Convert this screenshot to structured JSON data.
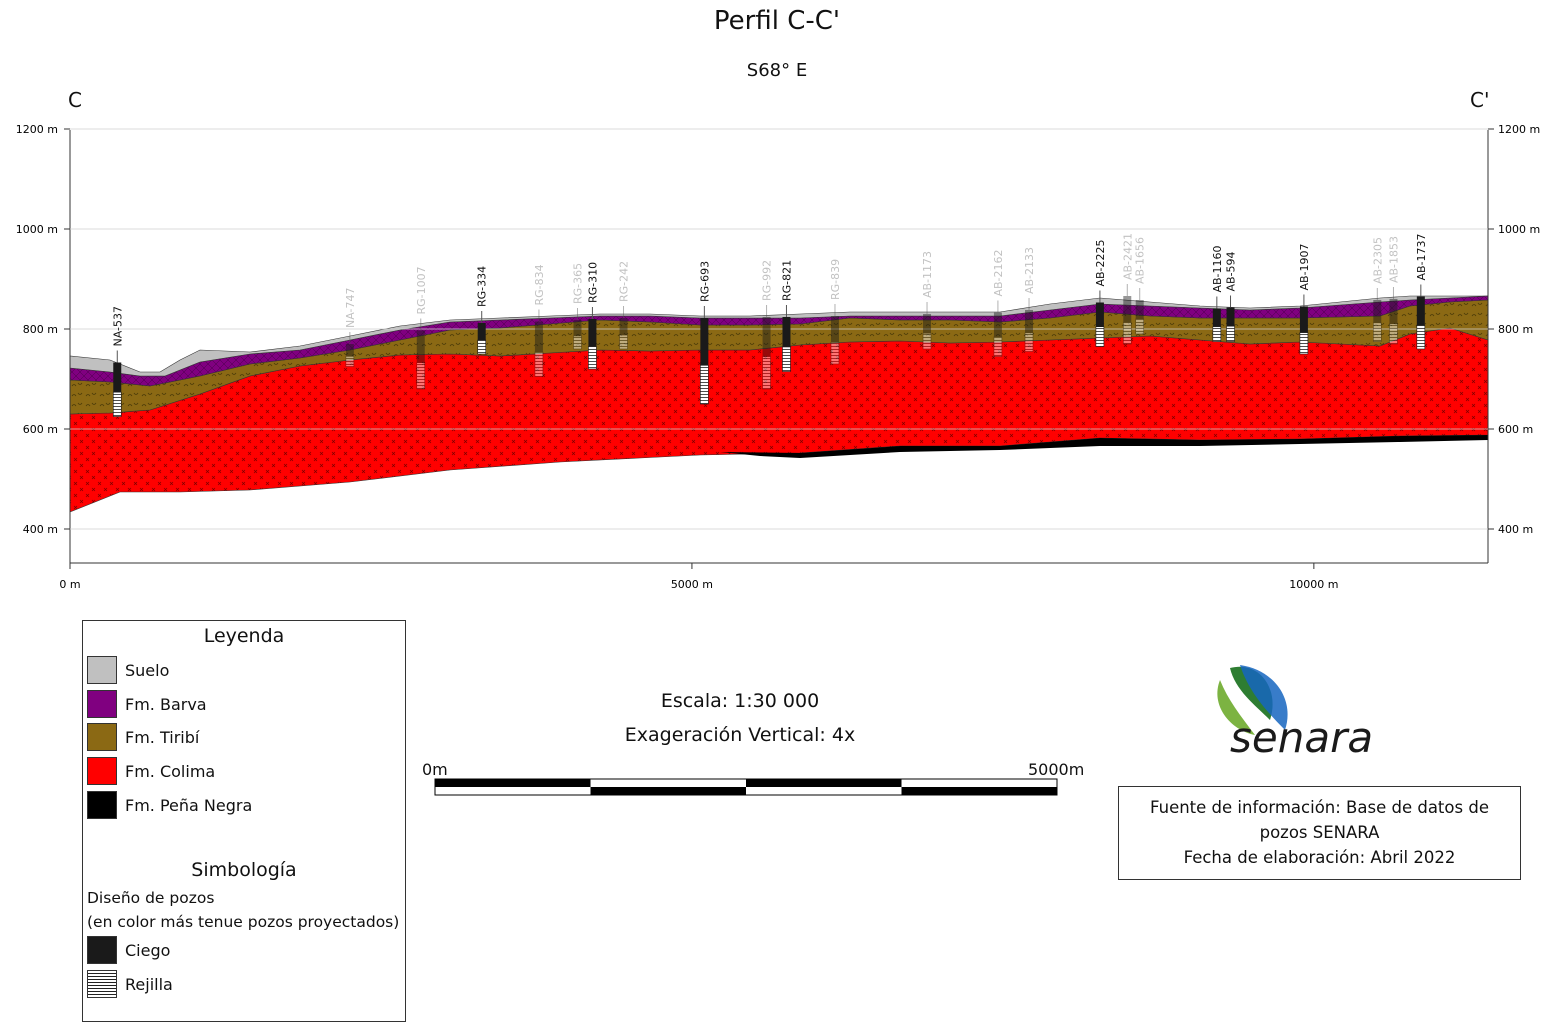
{
  "header": {
    "title": "Perfil C-C'",
    "bearing": "S68° E",
    "left_end": "C",
    "right_end": "C'"
  },
  "axes": {
    "y_ticks": [
      "1200 m",
      "1000 m",
      "800 m",
      "600 m",
      "400 m"
    ],
    "y_values": [
      1200,
      1000,
      800,
      600,
      400
    ],
    "x_ticks": [
      "0 m",
      "5000 m",
      "10000 m"
    ],
    "x_values": [
      0,
      5000,
      10000
    ]
  },
  "wells": [
    {
      "name": "NA-537",
      "d": 380,
      "top": 733,
      "bottom": 625,
      "projected": false
    },
    {
      "name": "NA-747",
      "d": 2250,
      "top": 770,
      "bottom": 725,
      "projected": true
    },
    {
      "name": "RG-1007",
      "d": 2820,
      "top": 797,
      "bottom": 680,
      "projected": true
    },
    {
      "name": "RG-334",
      "d": 3310,
      "top": 812,
      "bottom": 750,
      "projected": false
    },
    {
      "name": "RG-834",
      "d": 3770,
      "top": 815,
      "bottom": 705,
      "projected": true
    },
    {
      "name": "RG-365",
      "d": 4080,
      "top": 818,
      "bottom": 760,
      "projected": true
    },
    {
      "name": "RG-310",
      "d": 4200,
      "top": 820,
      "bottom": 720,
      "projected": false
    },
    {
      "name": "RG-242",
      "d": 4450,
      "top": 822,
      "bottom": 760,
      "projected": true
    },
    {
      "name": "RG-693",
      "d": 5100,
      "top": 822,
      "bottom": 650,
      "projected": false
    },
    {
      "name": "RG-992",
      "d": 5600,
      "top": 824,
      "bottom": 680,
      "projected": true
    },
    {
      "name": "RG-821",
      "d": 5760,
      "top": 824,
      "bottom": 715,
      "projected": false
    },
    {
      "name": "RG-839",
      "d": 6150,
      "top": 826,
      "bottom": 730,
      "projected": true
    },
    {
      "name": "AB-1173",
      "d": 6890,
      "top": 830,
      "bottom": 760,
      "projected": true
    },
    {
      "name": "AB-2162",
      "d": 7460,
      "top": 833,
      "bottom": 745,
      "projected": true
    },
    {
      "name": "AB-2133",
      "d": 7710,
      "top": 838,
      "bottom": 755,
      "projected": true
    },
    {
      "name": "AB-2225",
      "d": 8280,
      "top": 853,
      "bottom": 765,
      "projected": false
    },
    {
      "name": "AB-2421",
      "d": 8500,
      "top": 866,
      "bottom": 770,
      "projected": true
    },
    {
      "name": "AB-1656",
      "d": 8600,
      "top": 858,
      "bottom": 790,
      "projected": true
    },
    {
      "name": "AB-1160",
      "d": 9220,
      "top": 841,
      "bottom": 775,
      "projected": false
    },
    {
      "name": "AB-594",
      "d": 9330,
      "top": 843,
      "bottom": 775,
      "projected": false
    },
    {
      "name": "AB-1907",
      "d": 9920,
      "top": 845,
      "bottom": 750,
      "projected": false
    },
    {
      "name": "AB-2305",
      "d": 10510,
      "top": 858,
      "bottom": 775,
      "projected": true
    },
    {
      "name": "AB-1853",
      "d": 10640,
      "top": 860,
      "bottom": 770,
      "projected": true
    },
    {
      "name": "AB-1737",
      "d": 10860,
      "top": 865,
      "bottom": 760,
      "projected": false
    }
  ],
  "colors": {
    "suelo": "#c0c0c0",
    "barva": "#800080",
    "tiribi": "#8b6914",
    "colima": "#ff0000",
    "pena_negra": "#000000",
    "ciego": "#1a1a1a"
  },
  "legend": {
    "title": "Leyenda",
    "items": [
      {
        "label": "Suelo",
        "color": "#c0c0c0"
      },
      {
        "label": "Fm. Barva",
        "color": "#800080"
      },
      {
        "label": "Fm. Tiribí",
        "color": "#8b6914"
      },
      {
        "label": "Fm. Colima",
        "color": "#ff0000"
      },
      {
        "label": "Fm. Peña Negra",
        "color": "#000000"
      }
    ],
    "symbology_title": "Simbología",
    "design_line1": "Diseño de pozos",
    "design_line2": "(en color más tenue pozos proyectados)",
    "ciego": "Ciego",
    "rejilla": "Rejilla"
  },
  "scale": {
    "text1": "Escala: 1:30 000",
    "text2": "Exageración Vertical: 4x",
    "left_label": "0m",
    "right_label": "5000m"
  },
  "source": {
    "line1": "Fuente de información: Base de datos de",
    "line2": "pozos SENARA",
    "line3": "Fecha de elaboración: Abril 2022"
  },
  "logo": {
    "text": "senara"
  }
}
